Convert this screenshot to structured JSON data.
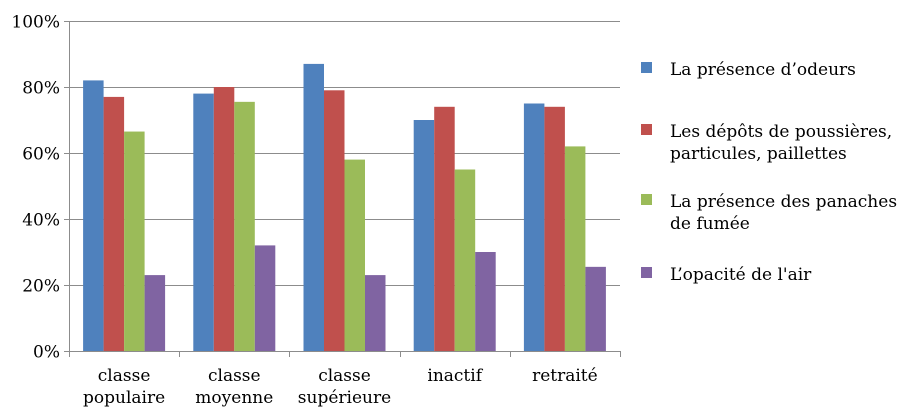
{
  "chart_data": {
    "type": "bar",
    "title": "",
    "xlabel": "",
    "ylabel": "",
    "ylim": [
      0,
      100
    ],
    "y_tick_labels": [
      "0%",
      "20%",
      "40%",
      "60%",
      "80%",
      "100%"
    ],
    "y_ticks": [
      0,
      20,
      40,
      60,
      80,
      100
    ],
    "grid": true,
    "legend_position": "right",
    "categories": [
      [
        "classe",
        "populaire"
      ],
      [
        "classe",
        "moyenne"
      ],
      [
        "classe",
        "supérieure"
      ],
      [
        "inactif"
      ],
      [
        "retraité"
      ]
    ],
    "series": [
      {
        "name": "La présence d’odeurs",
        "legend_lines": [
          "La présence d’odeurs"
        ],
        "color": "#4F81BD",
        "values": [
          82,
          78,
          87,
          70,
          75
        ]
      },
      {
        "name": "Les dépôts de poussières, particules, paillettes",
        "legend_lines": [
          "Les dépôts de poussières,",
          "particules, paillettes"
        ],
        "color": "#C0504D",
        "values": [
          77,
          80,
          79,
          74,
          74
        ]
      },
      {
        "name": "La présence des panaches de fumée",
        "legend_lines": [
          "La présence des panaches",
          "de fumée"
        ],
        "color": "#9BBB59",
        "values": [
          66.5,
          75.5,
          58,
          55,
          62
        ]
      },
      {
        "name": "L’opacité de l'air",
        "legend_lines": [
          "L’opacité de l'air"
        ],
        "color": "#8064A2",
        "values": [
          23,
          32,
          23,
          30,
          25.5
        ]
      }
    ]
  }
}
